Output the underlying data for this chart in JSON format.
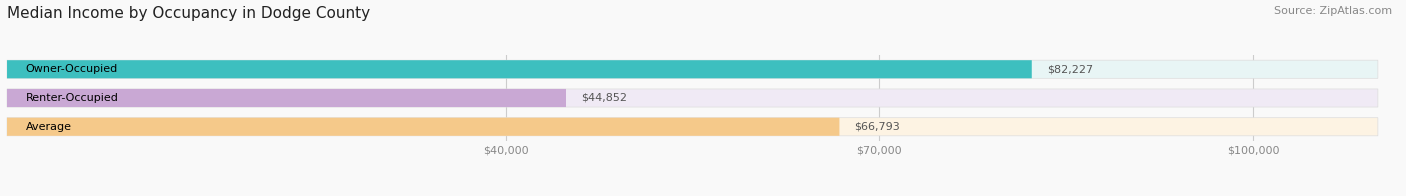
{
  "title": "Median Income by Occupancy in Dodge County",
  "source": "Source: ZipAtlas.com",
  "categories": [
    "Owner-Occupied",
    "Renter-Occupied",
    "Average"
  ],
  "values": [
    82227,
    44852,
    66793
  ],
  "labels": [
    "$82,227",
    "$44,852",
    "$66,793"
  ],
  "bar_colors": [
    "#3dbfbf",
    "#c9a8d4",
    "#f5c98a"
  ],
  "bar_bg_colors": [
    "#e8f5f5",
    "#f0eaf5",
    "#fdf3e3"
  ],
  "xlim": [
    0,
    110000
  ],
  "xticks": [
    40000,
    70000,
    100000
  ],
  "xticklabels": [
    "$40,000",
    "$70,000",
    "$100,000"
  ],
  "title_fontsize": 11,
  "source_fontsize": 8,
  "label_fontsize": 8,
  "bar_label_fontsize": 8,
  "xtick_fontsize": 8,
  "bar_height": 0.62,
  "figsize": [
    14.06,
    1.96
  ],
  "dpi": 100
}
